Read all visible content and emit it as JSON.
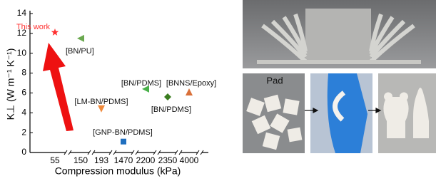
{
  "chart_data": {
    "type": "scatter",
    "xlabel": "Compression modulus (kPa)",
    "ylabel": "K⊥ (W m⁻¹ K⁻¹)",
    "categories": [
      "55",
      "150",
      "193",
      "1470",
      "2200",
      "2350",
      "4000"
    ],
    "values": [
      12.1,
      11.5,
      4.4,
      1.1,
      6.4,
      5.6,
      6.1
    ],
    "point_labels": [
      "This work",
      "[BN/PU]",
      "[LM-BN/PDMS]",
      "[GNP-BN/PDMS]",
      "[BN/PDMS]",
      "[BN/PDMS]",
      "[BNNS/Epoxy]"
    ],
    "colors": [
      "#ff3030",
      "#6aa84f",
      "#f08a3c",
      "#1f6fbf",
      "#49b049",
      "#3a7d20",
      "#d9703a"
    ],
    "markers": [
      "star",
      "triangle-left",
      "triangle-down",
      "square",
      "triangle-left",
      "diamond",
      "triangle-up"
    ],
    "ylim": [
      0,
      14
    ],
    "yticks": [
      0,
      2,
      4,
      6,
      8,
      10,
      12,
      14
    ]
  },
  "photos": {
    "pad_label": "Pad"
  }
}
